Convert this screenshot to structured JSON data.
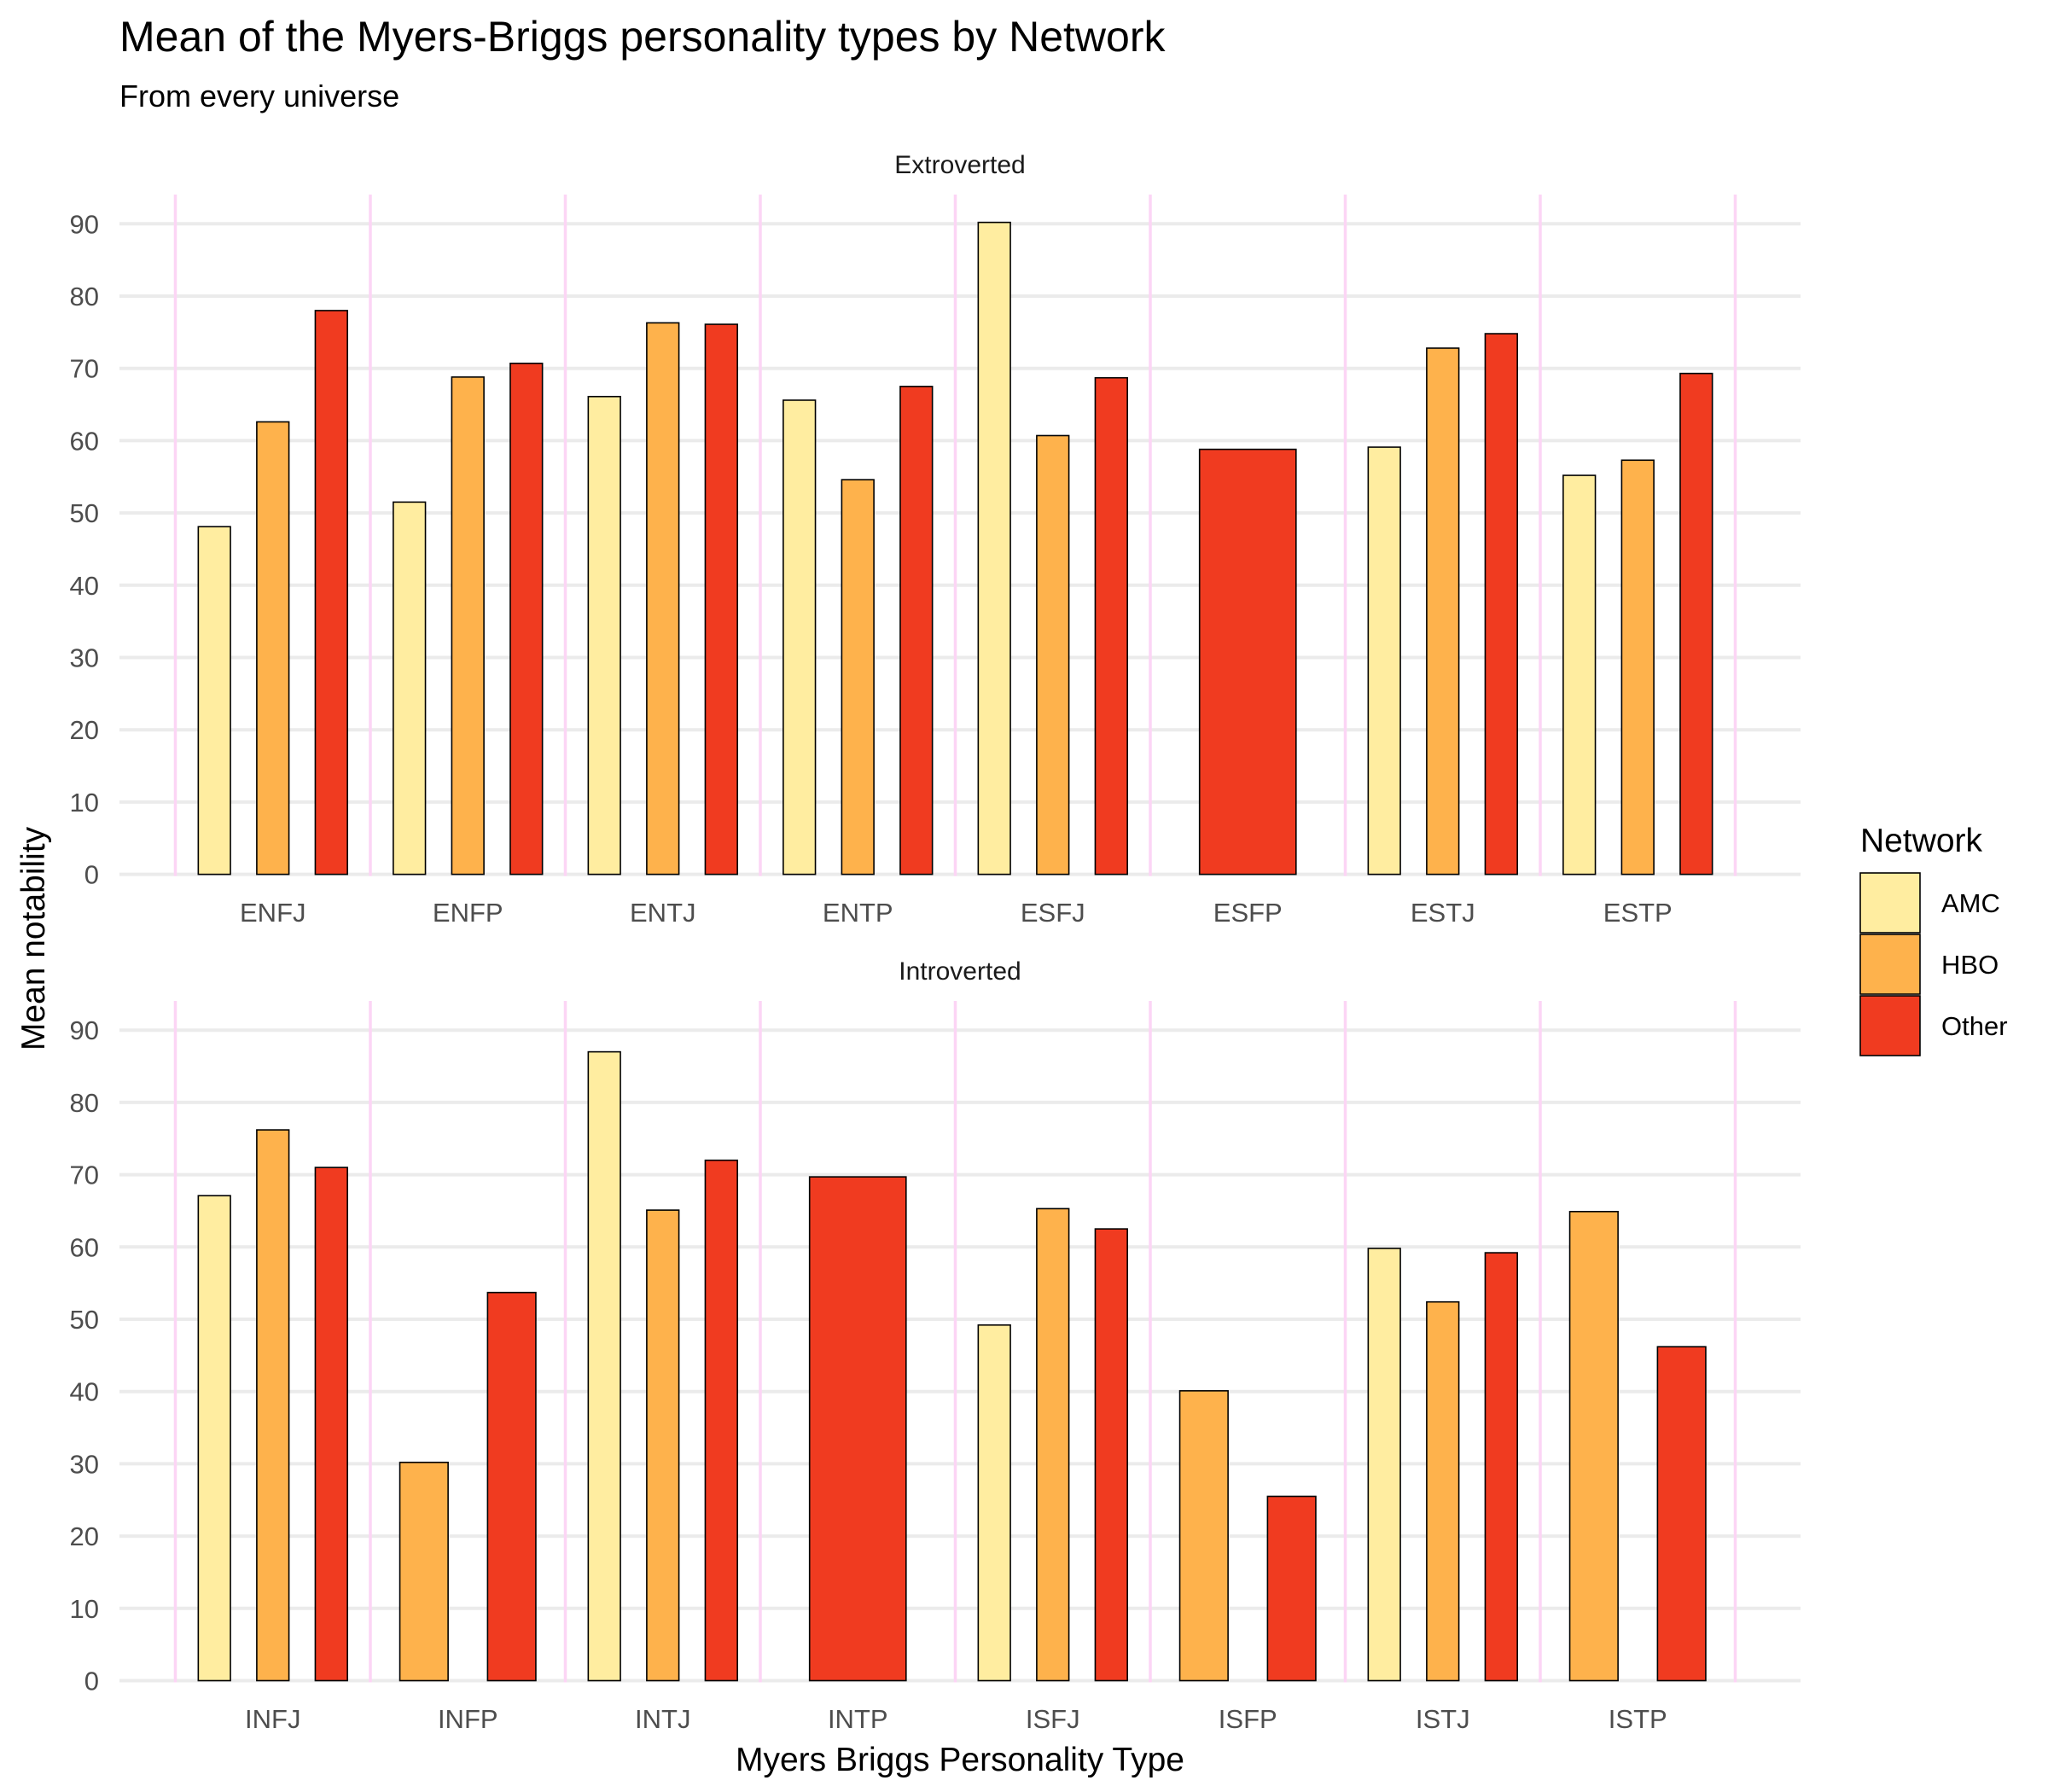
{
  "chart_data": {
    "type": "bar",
    "title": "Mean of the Myers-Briggs personality types by Network",
    "subtitle": "From every universe",
    "xlabel": "Myers Briggs Personality Type",
    "ylabel": "Mean notability",
    "ylim": [
      0,
      92
    ],
    "yticks": [
      0,
      10,
      20,
      30,
      40,
      50,
      60,
      70,
      80,
      90
    ],
    "grid": true,
    "legend": {
      "title": "Network",
      "position": "right",
      "entries": [
        {
          "name": "AMC",
          "color": "#FFEDA0"
        },
        {
          "name": "HBO",
          "color": "#FEB24C"
        },
        {
          "name": "Other",
          "color": "#F03B20"
        }
      ]
    },
    "facets": [
      {
        "label": "Extroverted",
        "categories": [
          "ENFJ",
          "ENFP",
          "ENTJ",
          "ENTP",
          "ESFJ",
          "ESFP",
          "ESTJ",
          "ESTP"
        ],
        "series": [
          {
            "name": "AMC",
            "values": [
              48.1,
              51.5,
              66.1,
              65.6,
              90.2,
              null,
              59.1,
              55.2
            ]
          },
          {
            "name": "HBO",
            "values": [
              62.6,
              68.8,
              76.3,
              54.6,
              60.7,
              null,
              72.8,
              57.3
            ]
          },
          {
            "name": "Other",
            "values": [
              78.0,
              70.7,
              76.1,
              67.5,
              68.7,
              58.8,
              74.8,
              69.3
            ]
          }
        ]
      },
      {
        "label": "Introverted",
        "categories": [
          "INFJ",
          "INFP",
          "INTJ",
          "INTP",
          "ISFJ",
          "ISFP",
          "ISTJ",
          "ISTP"
        ],
        "series": [
          {
            "name": "AMC",
            "values": [
              67.1,
              null,
              87.0,
              null,
              49.2,
              null,
              59.8,
              null
            ]
          },
          {
            "name": "HBO",
            "values": [
              76.2,
              30.2,
              65.1,
              null,
              65.3,
              40.1,
              52.4,
              64.9
            ]
          },
          {
            "name": "Other",
            "values": [
              71.0,
              53.7,
              72.0,
              69.7,
              62.5,
              25.5,
              59.2,
              46.2
            ]
          }
        ]
      }
    ]
  }
}
